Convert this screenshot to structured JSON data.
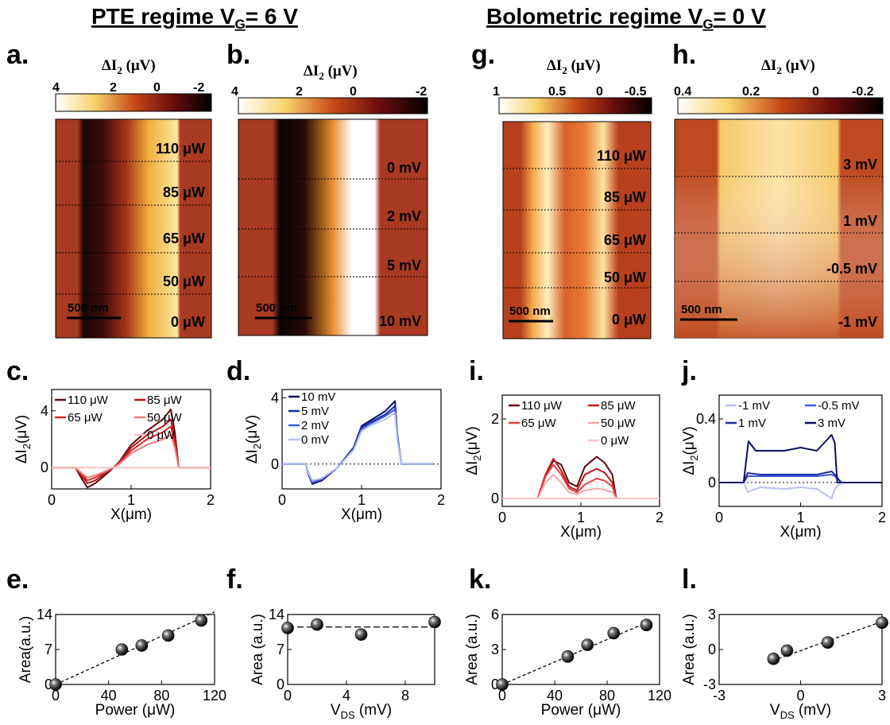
{
  "headings": {
    "left": "PTE regime V",
    "left_sub": "G",
    "left_tail": "= 6 V",
    "right": "Bolometric regime V",
    "right_sub": "G",
    "right_tail": "= 0 V"
  },
  "maps": [
    {
      "id": "a",
      "letter": "a.",
      "cbar_title": "ΔI",
      "cbar_title_sub": "2",
      "cbar_title_unit": " (μV)",
      "ticks": [
        "4",
        "2",
        "0",
        "-2"
      ],
      "labels": [
        "110 μW",
        "85 μW",
        "65 μW",
        "50 μW",
        "0 μW"
      ],
      "scalebar": "500 nm"
    },
    {
      "id": "b",
      "letter": "b.",
      "cbar_title": "ΔI",
      "cbar_title_sub": "2",
      "cbar_title_unit": " (μV)",
      "ticks": [
        "4",
        "2",
        "0",
        "-2"
      ],
      "labels": [
        "0 mV",
        "2 mV",
        "5 mV",
        "10 mV"
      ],
      "scalebar": "500 nm"
    },
    {
      "id": "g",
      "letter": "g.",
      "cbar_title": "ΔI",
      "cbar_title_sub": "2",
      "cbar_title_unit": " (μV)",
      "ticks": [
        "1",
        "0.5",
        "0",
        "-0.5"
      ],
      "labels": [
        "110 μW",
        "85 μW",
        "65 μW",
        "50 μW",
        "0 μW"
      ],
      "scalebar": "500 nm"
    },
    {
      "id": "h",
      "letter": "h.",
      "cbar_title": "ΔI",
      "cbar_title_sub": "2",
      "cbar_title_unit": " (μV)",
      "ticks": [
        "0.4",
        "0.2",
        "0",
        "-0.2"
      ],
      "labels": [
        "3 mV",
        "1 mV",
        "-0.5 mV",
        "-1 mV"
      ],
      "scalebar": "500 nm"
    }
  ],
  "chart_data": [
    {
      "id": "c",
      "letter": "c.",
      "type": "line",
      "xlabel": "X(μm)",
      "ylabel": "ΔI",
      "ylabel_sub": "2",
      "ylabel_unit": "(μV)",
      "xlim": [
        0,
        2
      ],
      "ylim": [
        -1.5,
        5.5
      ],
      "xticks": [
        0,
        1,
        2
      ],
      "yticks": [
        0,
        4
      ],
      "series": [
        {
          "name": "110 μW",
          "color": "#5c0a0a",
          "x": [
            0,
            0.3,
            0.38,
            0.45,
            0.55,
            0.7,
            0.85,
            1.0,
            1.2,
            1.4,
            1.5,
            1.55,
            1.6,
            2.0
          ],
          "y": [
            0,
            0,
            -0.8,
            -1.4,
            -1.1,
            -0.4,
            0.4,
            1.6,
            2.6,
            3.4,
            4.1,
            2.5,
            0,
            0
          ]
        },
        {
          "name": "85 μW",
          "color": "#b01818",
          "x": [
            0,
            0.3,
            0.38,
            0.45,
            0.55,
            0.7,
            0.85,
            1.0,
            1.2,
            1.4,
            1.5,
            1.55,
            1.6,
            2.0
          ],
          "y": [
            0,
            0,
            -0.6,
            -1.1,
            -0.9,
            -0.3,
            0.35,
            1.4,
            2.3,
            2.9,
            3.4,
            2.0,
            0,
            0
          ]
        },
        {
          "name": "65 μW",
          "color": "#e02828",
          "x": [
            0,
            0.3,
            0.38,
            0.45,
            0.55,
            0.7,
            0.85,
            1.0,
            1.2,
            1.4,
            1.5,
            1.55,
            1.6,
            2.0
          ],
          "y": [
            0,
            0,
            -0.5,
            -0.9,
            -0.7,
            -0.25,
            0.3,
            1.2,
            2.0,
            2.5,
            2.9,
            1.7,
            0,
            0
          ]
        },
        {
          "name": "50 μW",
          "color": "#f27a7a",
          "x": [
            0,
            0.3,
            0.38,
            0.45,
            0.55,
            0.7,
            0.85,
            1.0,
            1.2,
            1.4,
            1.5,
            1.55,
            1.6,
            2.0
          ],
          "y": [
            0,
            0,
            -0.4,
            -0.7,
            -0.55,
            -0.2,
            0.25,
            1.0,
            1.6,
            2.0,
            2.3,
            1.4,
            0,
            0
          ]
        },
        {
          "name": "0 μW",
          "color": "#f7c6c6",
          "x": [
            0,
            2.0
          ],
          "y": [
            0,
            0
          ]
        }
      ]
    },
    {
      "id": "d",
      "letter": "d.",
      "type": "line",
      "xlabel": "X(μm)",
      "ylabel": "ΔI",
      "ylabel_sub": "2",
      "ylabel_unit": "(μV)",
      "xlim": [
        0,
        2
      ],
      "ylim": [
        -1.5,
        4.5
      ],
      "xticks": [
        0,
        1,
        2
      ],
      "yticks": [
        0,
        4
      ],
      "series": [
        {
          "name": "10 mV",
          "color": "#0a1060",
          "x": [
            0,
            0.3,
            0.33,
            0.38,
            0.5,
            0.7,
            0.9,
            1.0,
            1.1,
            1.3,
            1.42,
            1.45,
            1.5,
            1.9
          ],
          "y": [
            0,
            0,
            -0.6,
            -1.2,
            -1.0,
            -0.2,
            1.0,
            2.3,
            2.6,
            3.2,
            3.8,
            1.8,
            0,
            0
          ]
        },
        {
          "name": "5 mV",
          "color": "#1a2ea8",
          "x": [
            0,
            0.3,
            0.33,
            0.38,
            0.5,
            0.7,
            0.9,
            1.0,
            1.1,
            1.3,
            1.42,
            1.45,
            1.5,
            1.9
          ],
          "y": [
            0,
            0,
            -0.6,
            -1.15,
            -0.95,
            -0.2,
            0.95,
            2.2,
            2.5,
            3.0,
            3.5,
            1.7,
            0,
            0
          ]
        },
        {
          "name": "2 mV",
          "color": "#3f58e0",
          "x": [
            0,
            0.3,
            0.33,
            0.38,
            0.5,
            0.7,
            0.9,
            1.0,
            1.1,
            1.3,
            1.42,
            1.45,
            1.5,
            1.9
          ],
          "y": [
            0,
            0,
            -0.55,
            -1.1,
            -0.9,
            -0.2,
            0.9,
            2.1,
            2.4,
            2.9,
            3.3,
            1.6,
            0,
            0
          ]
        },
        {
          "name": "0 mV",
          "color": "#b7c2f2",
          "x": [
            0,
            0.3,
            0.33,
            0.38,
            0.5,
            0.7,
            0.9,
            1.0,
            1.1,
            1.3,
            1.42,
            1.45,
            1.5,
            1.9
          ],
          "y": [
            0,
            0,
            -0.5,
            -1.0,
            -0.85,
            -0.2,
            0.85,
            2.0,
            2.3,
            2.7,
            3.1,
            1.5,
            0,
            0
          ]
        }
      ]
    },
    {
      "id": "i",
      "letter": "i.",
      "type": "line",
      "xlabel": "X(μm)",
      "ylabel": "ΔI",
      "ylabel_sub": "2",
      "ylabel_unit": "(μV)",
      "xlim": [
        0,
        2
      ],
      "ylim": [
        -0.2,
        2.6
      ],
      "xticks": [
        0,
        1,
        2
      ],
      "yticks": [
        0,
        2
      ],
      "series": [
        {
          "name": "110 μW",
          "color": "#5c0a0a",
          "x": [
            0,
            0.45,
            0.55,
            0.65,
            0.75,
            0.85,
            0.95,
            1.05,
            1.2,
            1.3,
            1.4,
            1.45,
            2.0
          ],
          "y": [
            0,
            0,
            0.6,
            0.95,
            0.85,
            0.4,
            0.3,
            0.8,
            1.05,
            0.9,
            0.6,
            0,
            0
          ]
        },
        {
          "name": "85 μW",
          "color": "#c01818",
          "x": [
            0,
            0.45,
            0.55,
            0.65,
            0.75,
            0.85,
            0.95,
            1.05,
            1.2,
            1.3,
            1.4,
            1.45,
            2.0
          ],
          "y": [
            0,
            0,
            0.6,
            1.0,
            0.7,
            0.3,
            0.2,
            0.6,
            0.75,
            0.65,
            0.4,
            0,
            0
          ]
        },
        {
          "name": "65 μW",
          "color": "#e84040",
          "x": [
            0,
            0.45,
            0.55,
            0.65,
            0.75,
            0.85,
            0.95,
            1.05,
            1.2,
            1.3,
            1.4,
            1.45,
            2.0
          ],
          "y": [
            0,
            0,
            0.55,
            0.85,
            0.6,
            0.25,
            0.15,
            0.35,
            0.5,
            0.45,
            0.3,
            0,
            0
          ]
        },
        {
          "name": "50 μW",
          "color": "#f5a6a6",
          "x": [
            0,
            0.45,
            0.55,
            0.65,
            0.75,
            0.85,
            0.95,
            1.05,
            1.2,
            1.3,
            1.4,
            1.45,
            2.0
          ],
          "y": [
            0,
            0,
            0.4,
            0.6,
            0.4,
            0.15,
            0.1,
            0.2,
            0.25,
            0.22,
            0.15,
            0,
            0
          ]
        },
        {
          "name": "0 μW",
          "color": "#f7c6c6",
          "x": [
            0,
            2.0
          ],
          "y": [
            0,
            0
          ]
        }
      ]
    },
    {
      "id": "j",
      "letter": "j.",
      "type": "line",
      "xlabel": "X(μm)",
      "ylabel": "ΔI",
      "ylabel_sub": "2",
      "ylabel_unit": "(μV)",
      "xlim": [
        0,
        2
      ],
      "ylim": [
        -0.15,
        0.55
      ],
      "xticks": [
        0,
        1,
        2
      ],
      "yticks": [
        0,
        0.4
      ],
      "series": [
        {
          "name": "-1 mV",
          "color": "#b7c2f2",
          "x": [
            0,
            0.3,
            0.35,
            0.5,
            0.8,
            1.0,
            1.2,
            1.38,
            1.42,
            1.5,
            2.0
          ],
          "y": [
            0,
            0,
            -0.06,
            -0.03,
            -0.04,
            -0.03,
            -0.04,
            -0.1,
            -0.04,
            0,
            0
          ]
        },
        {
          "name": "-0.5 mV",
          "color": "#3f58e0",
          "x": [
            0,
            0.3,
            0.35,
            0.5,
            0.8,
            1.0,
            1.2,
            1.38,
            1.42,
            1.5,
            2.0
          ],
          "y": [
            0,
            0,
            0.04,
            0.04,
            0.04,
            0.04,
            0.04,
            0.05,
            0.04,
            0,
            0
          ]
        },
        {
          "name": "1 mV",
          "color": "#1a2ea8",
          "x": [
            0,
            0.3,
            0.35,
            0.5,
            0.8,
            1.0,
            1.2,
            1.38,
            1.42,
            1.5,
            2.0
          ],
          "y": [
            0,
            0,
            0.06,
            0.05,
            0.05,
            0.05,
            0.05,
            0.07,
            0.05,
            0,
            0
          ]
        },
        {
          "name": "3 mV",
          "color": "#0a1060",
          "x": [
            0,
            0.3,
            0.36,
            0.45,
            0.6,
            0.8,
            1.0,
            1.2,
            1.38,
            1.42,
            1.45,
            2.0
          ],
          "y": [
            0,
            0,
            0.26,
            0.2,
            0.2,
            0.2,
            0.22,
            0.2,
            0.3,
            0.25,
            0,
            0
          ]
        }
      ]
    },
    {
      "id": "e",
      "letter": "e.",
      "type": "scatter",
      "xlabel": "Power (μW)",
      "ylabel": "Area(a.u.)",
      "xlim": [
        0,
        120
      ],
      "ylim": [
        0,
        14
      ],
      "xticks": [
        0,
        40,
        80,
        120
      ],
      "yticks": [
        0,
        7,
        14
      ],
      "x": [
        0,
        50,
        65,
        85,
        110
      ],
      "y": [
        0,
        7,
        7.8,
        9.8,
        12.8
      ],
      "fit": [
        [
          0,
          0
        ],
        [
          120,
          14.5
        ]
      ]
    },
    {
      "id": "f",
      "letter": "f.",
      "type": "scatter",
      "xlabel": "V",
      "xlabel_sub": "DS",
      "xlabel_unit": " (mV)",
      "ylabel": "Area (a.u.)",
      "xlim": [
        0,
        10
      ],
      "ylim": [
        0,
        14
      ],
      "xticks": [
        0,
        4,
        8
      ],
      "yticks": [
        0,
        7,
        14
      ],
      "x": [
        0,
        2,
        5,
        10
      ],
      "y": [
        11.3,
        12,
        10,
        12.5
      ],
      "fit": [
        [
          0,
          11.5
        ],
        [
          10,
          11.5
        ]
      ]
    },
    {
      "id": "k",
      "letter": "k.",
      "type": "scatter",
      "xlabel": "Power (μW)",
      "ylabel": "Area (a.u.)",
      "xlim": [
        0,
        120
      ],
      "ylim": [
        0,
        6
      ],
      "xticks": [
        0,
        40,
        80,
        120
      ],
      "yticks": [
        0,
        3,
        6
      ],
      "x": [
        0,
        50,
        65,
        85,
        110
      ],
      "y": [
        0,
        2.4,
        3.4,
        4.4,
        5.1
      ],
      "fit": [
        [
          0,
          0
        ],
        [
          110,
          5.3
        ]
      ]
    },
    {
      "id": "l",
      "letter": "l.",
      "type": "scatter",
      "xlabel": "V",
      "xlabel_sub": "DS",
      "xlabel_unit": " (mV)",
      "ylabel": "Area (a.u.)",
      "xlim": [
        -3,
        3
      ],
      "ylim": [
        -3,
        3
      ],
      "xticks": [
        -3,
        0,
        3
      ],
      "yticks": [
        -3,
        0,
        3
      ],
      "x": [
        -1,
        -0.5,
        1,
        3
      ],
      "y": [
        -0.8,
        -0.1,
        0.6,
        2.3
      ],
      "fit": [
        [
          -1.2,
          -1.1
        ],
        [
          3,
          2.4
        ]
      ]
    }
  ]
}
